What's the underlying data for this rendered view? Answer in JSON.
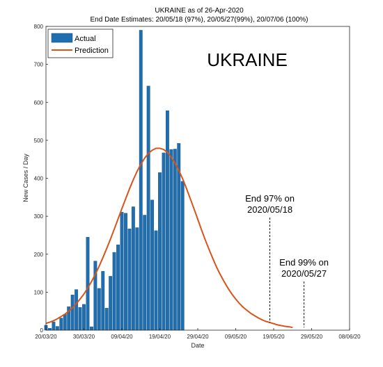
{
  "chart_data": {
    "type": "bar",
    "title": "UKRAINE as of 26-Apr-2020",
    "subtitle": "End Date Estimates: 20/05/18 (97%), 20/05/27(99%), 20/07/06 (100%)",
    "xlabel": "Date",
    "ylabel": "New Cases / Day",
    "country_label": "UKRAINE",
    "xlim": [
      "2020-03-20",
      "2020-06-08"
    ],
    "ylim": [
      0,
      800
    ],
    "yticks": [
      0,
      100,
      200,
      300,
      400,
      500,
      600,
      700,
      800
    ],
    "xticks": [
      "20/03/20",
      "30/03/20",
      "09/04/20",
      "19/04/20",
      "29/04/20",
      "09/05/20",
      "19/05/20",
      "29/05/20",
      "08/06/20"
    ],
    "grid": false,
    "legend": {
      "location": "top-left",
      "entries": [
        "Actual",
        "Prediction"
      ]
    },
    "colors": {
      "actual": "#1f6fb0",
      "prediction": "#d95319"
    },
    "series": [
      {
        "name": "Actual",
        "kind": "bar",
        "start_date": "2020-03-20",
        "values": [
          13,
          5,
          22,
          10,
          32,
          42,
          62,
          93,
          107,
          60,
          68,
          245,
          9,
          182,
          110,
          155,
          58,
          142,
          205,
          225,
          311,
          308,
          267,
          325,
          270,
          790,
          303,
          643,
          343,
          262,
          415,
          467,
          578,
          476,
          477,
          492,
          392
        ]
      },
      {
        "name": "Prediction",
        "kind": "line",
        "start_date": "2020-03-20",
        "values": [
          18,
          21,
          25,
          30,
          36,
          42,
          50,
          59,
          70,
          82,
          95,
          111,
          128,
          147,
          168,
          191,
          215,
          240,
          266,
          293,
          320,
          346,
          372,
          396,
          418,
          437,
          453,
          466,
          474,
          479,
          479,
          476,
          468,
          456,
          440,
          421,
          399,
          374,
          347,
          320,
          292,
          264,
          237,
          212,
          188,
          165,
          145,
          127,
          110,
          95,
          82,
          70,
          60,
          52,
          44,
          38,
          32,
          27,
          23,
          20,
          17,
          14,
          12,
          10,
          9,
          7
        ]
      }
    ],
    "annotations": [
      {
        "date": "2020-05-18",
        "line1": "End 97% on",
        "line2": "2020/05/18"
      },
      {
        "date": "2020-05-27",
        "line1": "End 99% on",
        "line2": "2020/05/27"
      }
    ]
  }
}
